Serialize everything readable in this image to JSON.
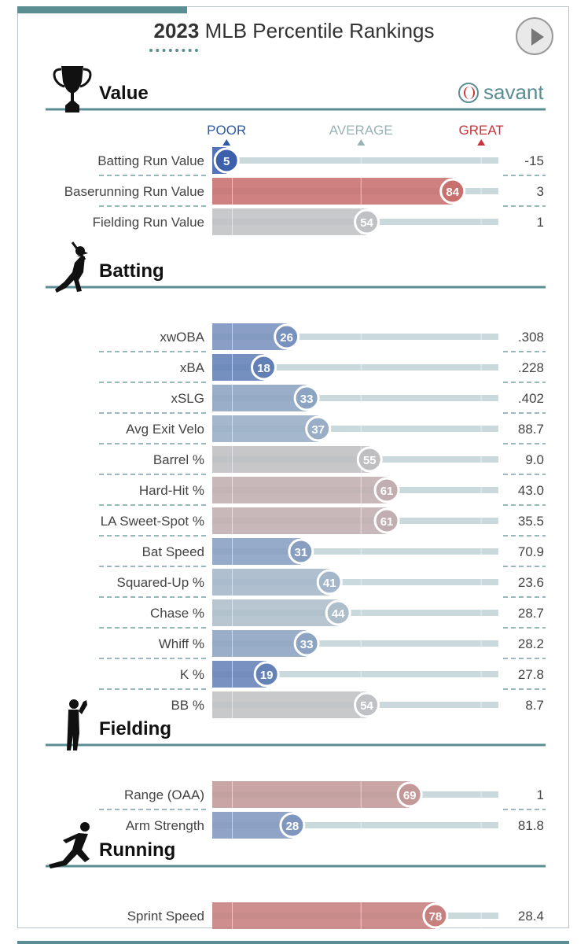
{
  "header": {
    "year": "2023",
    "title": "MLB Percentile Rankings",
    "brand": "savant"
  },
  "scale_labels": {
    "poor": "POOR",
    "average": "AVERAGE",
    "great": "GREAT"
  },
  "colors": {
    "section_line": "#5a8e93",
    "track": "#c9d9dc",
    "poor_label": "#2e5aa8",
    "average_label": "#9ab3b7",
    "great_label": "#c8343a"
  },
  "chart_data": {
    "type": "bar",
    "xlim": [
      0,
      100
    ],
    "sections": [
      {
        "name": "Value",
        "icon": "trophy-icon",
        "metrics": [
          {
            "label": "Batting Run Value",
            "percentile": 5,
            "stat": "-15"
          },
          {
            "label": "Baserunning Run Value",
            "percentile": 84,
            "stat": "3"
          },
          {
            "label": "Fielding Run Value",
            "percentile": 54,
            "stat": "1"
          }
        ]
      },
      {
        "name": "Batting",
        "icon": "batter-icon",
        "metrics": [
          {
            "label": "xwOBA",
            "percentile": 26,
            "stat": ".308"
          },
          {
            "label": "xBA",
            "percentile": 18,
            "stat": ".228"
          },
          {
            "label": "xSLG",
            "percentile": 33,
            "stat": ".402"
          },
          {
            "label": "Avg Exit Velo",
            "percentile": 37,
            "stat": "88.7"
          },
          {
            "label": "Barrel %",
            "percentile": 55,
            "stat": "9.0"
          },
          {
            "label": "Hard-Hit %",
            "percentile": 61,
            "stat": "43.0"
          },
          {
            "label": "LA Sweet-Spot %",
            "percentile": 61,
            "stat": "35.5"
          },
          {
            "label": "Bat Speed",
            "percentile": 31,
            "stat": "70.9"
          },
          {
            "label": "Squared-Up %",
            "percentile": 41,
            "stat": "23.6"
          },
          {
            "label": "Chase %",
            "percentile": 44,
            "stat": "28.7"
          },
          {
            "label": "Whiff %",
            "percentile": 33,
            "stat": "28.2"
          },
          {
            "label": "K %",
            "percentile": 19,
            "stat": "27.8"
          },
          {
            "label": "BB %",
            "percentile": 54,
            "stat": "8.7"
          }
        ]
      },
      {
        "name": "Fielding",
        "icon": "fielder-icon",
        "metrics": [
          {
            "label": "Range (OAA)",
            "percentile": 69,
            "stat": "1"
          },
          {
            "label": "Arm Strength",
            "percentile": 28,
            "stat": "81.8"
          }
        ]
      },
      {
        "name": "Running",
        "icon": "runner-icon",
        "metrics": [
          {
            "label": "Sprint Speed",
            "percentile": 78,
            "stat": "28.4"
          }
        ]
      }
    ]
  }
}
